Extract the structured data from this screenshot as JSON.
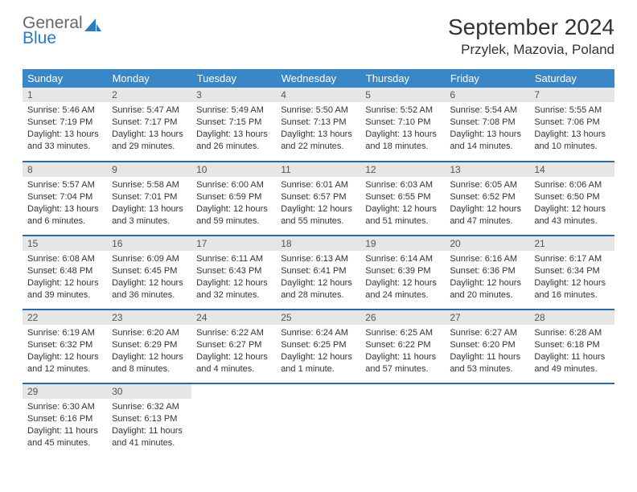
{
  "logo": {
    "line1": "General",
    "line2": "Blue"
  },
  "colors": {
    "header_bg": "#3a87c8",
    "header_text": "#ffffff",
    "row_divider": "#2b6aa3",
    "daynum_bg": "#e6e6e6",
    "logo_accent": "#2b7bbf",
    "text": "#333333"
  },
  "title": "September 2024",
  "location": "Przylek, Mazovia, Poland",
  "weekday_headers": [
    "Sunday",
    "Monday",
    "Tuesday",
    "Wednesday",
    "Thursday",
    "Friday",
    "Saturday"
  ],
  "weeks": [
    [
      {
        "n": "1",
        "sr": "5:46 AM",
        "ss": "7:19 PM",
        "dl": "13 hours and 33 minutes."
      },
      {
        "n": "2",
        "sr": "5:47 AM",
        "ss": "7:17 PM",
        "dl": "13 hours and 29 minutes."
      },
      {
        "n": "3",
        "sr": "5:49 AM",
        "ss": "7:15 PM",
        "dl": "13 hours and 26 minutes."
      },
      {
        "n": "4",
        "sr": "5:50 AM",
        "ss": "7:13 PM",
        "dl": "13 hours and 22 minutes."
      },
      {
        "n": "5",
        "sr": "5:52 AM",
        "ss": "7:10 PM",
        "dl": "13 hours and 18 minutes."
      },
      {
        "n": "6",
        "sr": "5:54 AM",
        "ss": "7:08 PM",
        "dl": "13 hours and 14 minutes."
      },
      {
        "n": "7",
        "sr": "5:55 AM",
        "ss": "7:06 PM",
        "dl": "13 hours and 10 minutes."
      }
    ],
    [
      {
        "n": "8",
        "sr": "5:57 AM",
        "ss": "7:04 PM",
        "dl": "13 hours and 6 minutes."
      },
      {
        "n": "9",
        "sr": "5:58 AM",
        "ss": "7:01 PM",
        "dl": "13 hours and 3 minutes."
      },
      {
        "n": "10",
        "sr": "6:00 AM",
        "ss": "6:59 PM",
        "dl": "12 hours and 59 minutes."
      },
      {
        "n": "11",
        "sr": "6:01 AM",
        "ss": "6:57 PM",
        "dl": "12 hours and 55 minutes."
      },
      {
        "n": "12",
        "sr": "6:03 AM",
        "ss": "6:55 PM",
        "dl": "12 hours and 51 minutes."
      },
      {
        "n": "13",
        "sr": "6:05 AM",
        "ss": "6:52 PM",
        "dl": "12 hours and 47 minutes."
      },
      {
        "n": "14",
        "sr": "6:06 AM",
        "ss": "6:50 PM",
        "dl": "12 hours and 43 minutes."
      }
    ],
    [
      {
        "n": "15",
        "sr": "6:08 AM",
        "ss": "6:48 PM",
        "dl": "12 hours and 39 minutes."
      },
      {
        "n": "16",
        "sr": "6:09 AM",
        "ss": "6:45 PM",
        "dl": "12 hours and 36 minutes."
      },
      {
        "n": "17",
        "sr": "6:11 AM",
        "ss": "6:43 PM",
        "dl": "12 hours and 32 minutes."
      },
      {
        "n": "18",
        "sr": "6:13 AM",
        "ss": "6:41 PM",
        "dl": "12 hours and 28 minutes."
      },
      {
        "n": "19",
        "sr": "6:14 AM",
        "ss": "6:39 PM",
        "dl": "12 hours and 24 minutes."
      },
      {
        "n": "20",
        "sr": "6:16 AM",
        "ss": "6:36 PM",
        "dl": "12 hours and 20 minutes."
      },
      {
        "n": "21",
        "sr": "6:17 AM",
        "ss": "6:34 PM",
        "dl": "12 hours and 16 minutes."
      }
    ],
    [
      {
        "n": "22",
        "sr": "6:19 AM",
        "ss": "6:32 PM",
        "dl": "12 hours and 12 minutes."
      },
      {
        "n": "23",
        "sr": "6:20 AM",
        "ss": "6:29 PM",
        "dl": "12 hours and 8 minutes."
      },
      {
        "n": "24",
        "sr": "6:22 AM",
        "ss": "6:27 PM",
        "dl": "12 hours and 4 minutes."
      },
      {
        "n": "25",
        "sr": "6:24 AM",
        "ss": "6:25 PM",
        "dl": "12 hours and 1 minute."
      },
      {
        "n": "26",
        "sr": "6:25 AM",
        "ss": "6:22 PM",
        "dl": "11 hours and 57 minutes."
      },
      {
        "n": "27",
        "sr": "6:27 AM",
        "ss": "6:20 PM",
        "dl": "11 hours and 53 minutes."
      },
      {
        "n": "28",
        "sr": "6:28 AM",
        "ss": "6:18 PM",
        "dl": "11 hours and 49 minutes."
      }
    ],
    [
      {
        "n": "29",
        "sr": "6:30 AM",
        "ss": "6:16 PM",
        "dl": "11 hours and 45 minutes."
      },
      {
        "n": "30",
        "sr": "6:32 AM",
        "ss": "6:13 PM",
        "dl": "11 hours and 41 minutes."
      },
      null,
      null,
      null,
      null,
      null
    ]
  ],
  "labels": {
    "sunrise": "Sunrise:",
    "sunset": "Sunset:",
    "daylight": "Daylight:"
  }
}
